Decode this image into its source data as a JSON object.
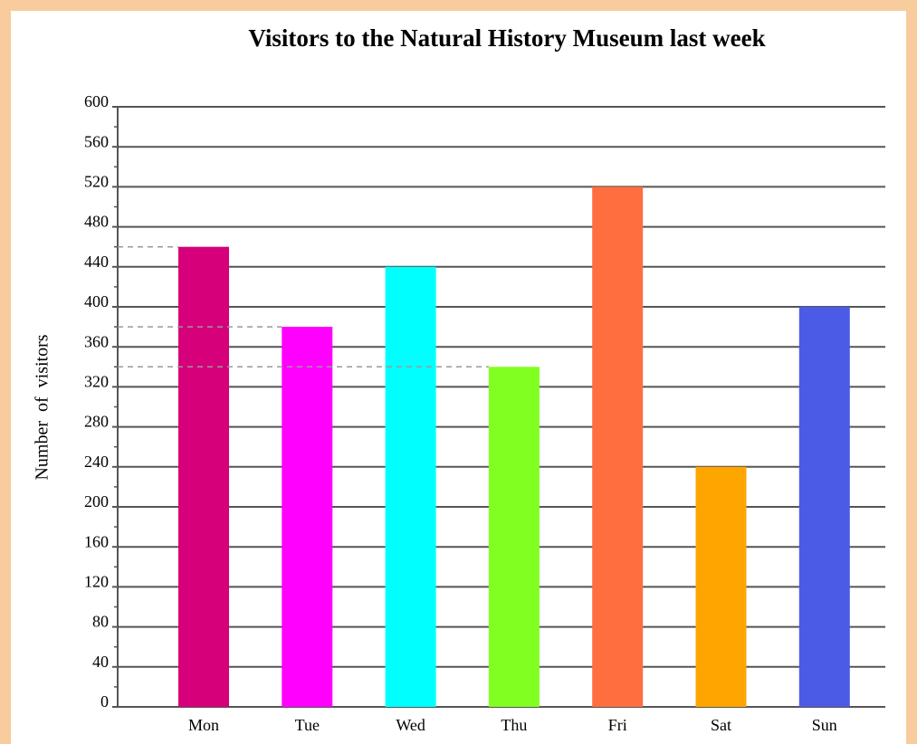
{
  "chart_data": {
    "type": "bar",
    "title": "Visitors to the Natural History Museum last week",
    "y_label": "Number  of  visitors",
    "categories": [
      "Mon",
      "Tue",
      "Wed",
      "Thu",
      "Fri",
      "Sat",
      "Sun"
    ],
    "values": [
      460,
      380,
      440,
      340,
      520,
      240,
      400
    ],
    "colors": [
      "#d6007a",
      "#ff00ff",
      "#00ffff",
      "#80ff20",
      "#ff6e3f",
      "#ffa500",
      "#4b5be6"
    ],
    "ylim": [
      0,
      600
    ],
    "yticks": [
      0,
      40,
      80,
      120,
      160,
      200,
      240,
      280,
      320,
      360,
      400,
      440,
      480,
      520,
      560,
      600
    ],
    "minor_yticks": [
      20,
      60,
      100,
      140,
      180,
      220,
      260,
      300,
      340,
      380,
      420,
      460,
      500,
      540,
      580
    ],
    "grid": true,
    "dashed_guides": [
      "Mon",
      "Tue",
      "Thu"
    ]
  }
}
